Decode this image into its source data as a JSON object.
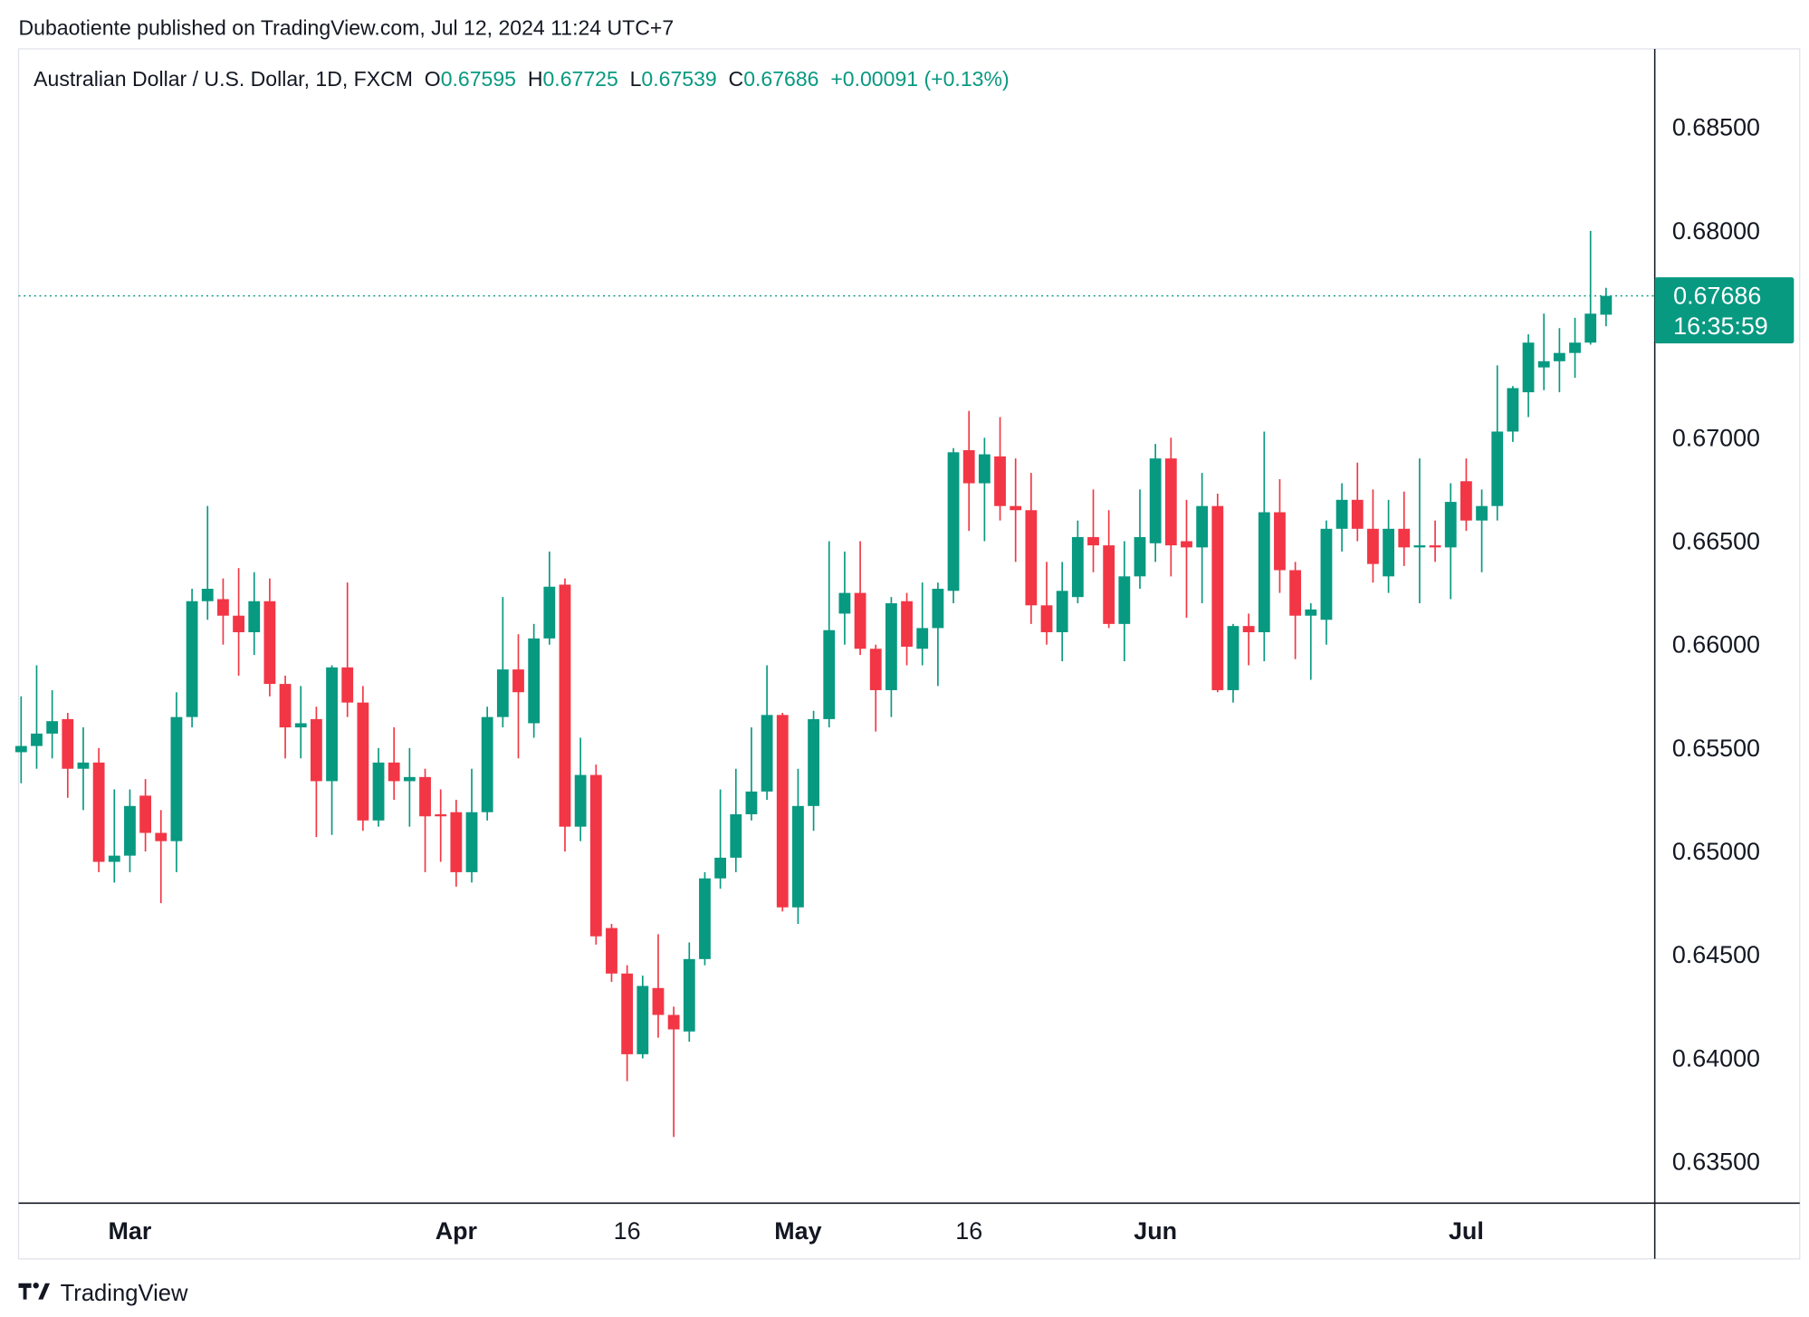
{
  "published": "Dubaotiente published on TradingView.com, Jul 12, 2024 11:24 UTC+7",
  "footer": "TradingView",
  "chart_data": {
    "type": "candlestick",
    "title": "Australian Dollar / U.S. Dollar, 1D, FXCM",
    "ohlc_header": [
      {
        "label": "O",
        "value": 0.67595
      },
      {
        "label": "H",
        "value": 0.67725
      },
      {
        "label": "L",
        "value": 0.67539
      },
      {
        "label": "C",
        "value": 0.67686
      }
    ],
    "change": "+0.00091 (+0.13%)",
    "countdown": "16:35:59",
    "up_color": "#089981",
    "down_color": "#f23645",
    "categories": [
      null,
      null,
      null,
      null,
      null,
      null,
      null,
      "Mar",
      null,
      null,
      null,
      null,
      null,
      null,
      null,
      null,
      null,
      null,
      null,
      null,
      null,
      null,
      null,
      null,
      null,
      null,
      null,
      null,
      "Apr",
      null,
      null,
      null,
      null,
      null,
      null,
      null,
      null,
      null,
      null,
      "16",
      null,
      null,
      null,
      null,
      null,
      null,
      null,
      null,
      null,
      null,
      "May",
      null,
      null,
      null,
      null,
      null,
      null,
      null,
      null,
      null,
      null,
      "16",
      null,
      null,
      null,
      null,
      null,
      null,
      null,
      null,
      null,
      null,
      null,
      "Jun",
      null,
      null,
      null,
      null,
      null,
      null,
      null,
      null,
      null,
      null,
      null,
      null,
      null,
      null,
      null,
      null,
      null,
      null,
      null,
      "Jul",
      null,
      null,
      null,
      null,
      null,
      null,
      null,
      null,
      null
    ],
    "open": [
      0.6548,
      0.6551,
      0.6557,
      0.6564,
      0.654,
      0.6543,
      0.6495,
      0.6498,
      0.6527,
      0.6509,
      0.6505,
      0.6565,
      0.6621,
      0.6622,
      0.6614,
      0.6606,
      0.6621,
      0.6581,
      0.656,
      0.6564,
      0.6534,
      0.6589,
      0.6572,
      0.6515,
      0.6543,
      0.6534,
      0.6536,
      0.6518,
      0.6519,
      0.649,
      0.6519,
      0.6565,
      0.6588,
      0.6562,
      0.6603,
      0.6629,
      0.6512,
      0.6537,
      0.6463,
      0.6441,
      0.6402,
      0.6434,
      0.6421,
      0.6413,
      0.6448,
      0.6487,
      0.6497,
      0.6518,
      0.6529,
      0.6566,
      0.6473,
      0.6522,
      0.6564,
      0.6615,
      0.6625,
      0.6598,
      0.6578,
      0.6621,
      0.6598,
      0.6608,
      0.6626,
      0.6694,
      0.6678,
      0.6691,
      0.6667,
      0.6665,
      0.6619,
      0.6606,
      0.6623,
      0.6652,
      0.6648,
      0.661,
      0.6633,
      0.6649,
      0.669,
      0.665,
      0.6647,
      0.6667,
      0.6578,
      0.6609,
      0.6606,
      0.6664,
      0.6636,
      0.6614,
      0.6612,
      0.6656,
      0.667,
      0.6656,
      0.6633,
      0.6656,
      0.6647,
      0.6648,
      0.6647,
      0.6679,
      0.666,
      0.6667,
      0.6703,
      0.6722,
      0.6734,
      0.6737,
      0.6741,
      0.6746,
      0.67595
    ],
    "high": [
      0.6575,
      0.659,
      0.6578,
      0.6567,
      0.656,
      0.655,
      0.653,
      0.653,
      0.6535,
      0.652,
      0.6577,
      0.6627,
      0.6667,
      0.6632,
      0.6637,
      0.6635,
      0.6632,
      0.6585,
      0.658,
      0.657,
      0.659,
      0.663,
      0.658,
      0.655,
      0.656,
      0.655,
      0.654,
      0.653,
      0.6525,
      0.654,
      0.657,
      0.6623,
      0.6605,
      0.661,
      0.6645,
      0.6632,
      0.6555,
      0.6542,
      0.6465,
      0.6445,
      0.644,
      0.646,
      0.6425,
      0.6456,
      0.649,
      0.653,
      0.654,
      0.656,
      0.659,
      0.6567,
      0.654,
      0.6568,
      0.665,
      0.6645,
      0.665,
      0.66,
      0.6623,
      0.6625,
      0.663,
      0.663,
      0.6695,
      0.6713,
      0.67,
      0.671,
      0.669,
      0.6683,
      0.664,
      0.664,
      0.666,
      0.6675,
      0.6665,
      0.665,
      0.6675,
      0.6697,
      0.67,
      0.667,
      0.6683,
      0.6673,
      0.661,
      0.6615,
      0.6703,
      0.668,
      0.664,
      0.662,
      0.666,
      0.6678,
      0.6688,
      0.6675,
      0.667,
      0.6674,
      0.669,
      0.666,
      0.6678,
      0.669,
      0.6675,
      0.6735,
      0.6725,
      0.675,
      0.676,
      0.6753,
      0.6758,
      0.68,
      0.67725
    ],
    "low": [
      0.6533,
      0.654,
      0.6545,
      0.6526,
      0.652,
      0.649,
      0.6485,
      0.649,
      0.65,
      0.6475,
      0.649,
      0.656,
      0.6612,
      0.66,
      0.6585,
      0.6595,
      0.6575,
      0.6545,
      0.6545,
      0.6507,
      0.6508,
      0.6565,
      0.651,
      0.6512,
      0.6525,
      0.6512,
      0.649,
      0.6495,
      0.6483,
      0.6485,
      0.6515,
      0.656,
      0.6545,
      0.6555,
      0.66,
      0.65,
      0.6505,
      0.6455,
      0.6437,
      0.6389,
      0.64,
      0.641,
      0.6362,
      0.6408,
      0.6445,
      0.6482,
      0.649,
      0.6515,
      0.6525,
      0.6471,
      0.6465,
      0.651,
      0.656,
      0.66,
      0.6595,
      0.6558,
      0.6565,
      0.659,
      0.659,
      0.658,
      0.662,
      0.6655,
      0.665,
      0.666,
      0.664,
      0.661,
      0.66,
      0.6592,
      0.662,
      0.6635,
      0.6608,
      0.6592,
      0.6627,
      0.664,
      0.6633,
      0.6613,
      0.662,
      0.6577,
      0.6572,
      0.659,
      0.6592,
      0.6625,
      0.6593,
      0.6583,
      0.66,
      0.6645,
      0.665,
      0.663,
      0.6625,
      0.6638,
      0.662,
      0.664,
      0.6622,
      0.6655,
      0.6635,
      0.666,
      0.6698,
      0.671,
      0.6723,
      0.6722,
      0.6729,
      0.6745,
      0.67539
    ],
    "close": [
      0.6551,
      0.6557,
      0.6563,
      0.654,
      0.6543,
      0.6495,
      0.6498,
      0.6522,
      0.6509,
      0.6505,
      0.6565,
      0.6621,
      0.6627,
      0.6614,
      0.6606,
      0.6621,
      0.6581,
      0.656,
      0.6562,
      0.6534,
      0.6589,
      0.6572,
      0.6515,
      0.6543,
      0.6534,
      0.6536,
      0.6517,
      0.6517,
      0.649,
      0.6519,
      0.6565,
      0.6588,
      0.6577,
      0.6603,
      0.6628,
      0.6512,
      0.6537,
      0.6459,
      0.6441,
      0.6402,
      0.6435,
      0.6421,
      0.6414,
      0.6448,
      0.6487,
      0.6497,
      0.6518,
      0.6529,
      0.6566,
      0.6473,
      0.6522,
      0.6564,
      0.6607,
      0.6625,
      0.6598,
      0.6578,
      0.662,
      0.6599,
      0.6608,
      0.6627,
      0.6693,
      0.6678,
      0.6692,
      0.6667,
      0.6665,
      0.6619,
      0.6606,
      0.6626,
      0.6652,
      0.6648,
      0.661,
      0.6633,
      0.6652,
      0.669,
      0.6648,
      0.6647,
      0.6667,
      0.6578,
      0.6609,
      0.6606,
      0.6664,
      0.6636,
      0.6614,
      0.6617,
      0.6656,
      0.667,
      0.6656,
      0.6639,
      0.6656,
      0.6647,
      0.6648,
      0.6647,
      0.6669,
      0.666,
      0.6667,
      0.6703,
      0.6724,
      0.6746,
      0.6737,
      0.6741,
      0.6746,
      0.676,
      0.67686
    ],
    "ylim": [
      0.633,
      0.6888
    ],
    "yticks": [
      {
        "value": 0.635,
        "label": "0.63500"
      },
      {
        "value": 0.64,
        "label": "0.64000"
      },
      {
        "value": 0.645,
        "label": "0.64500"
      },
      {
        "value": 0.65,
        "label": "0.65000"
      },
      {
        "value": 0.655,
        "label": "0.65500"
      },
      {
        "value": 0.66,
        "label": "0.66000"
      },
      {
        "value": 0.665,
        "label": "0.66500"
      },
      {
        "value": 0.67,
        "label": "0.67000"
      },
      {
        "value": 0.675,
        "label": "0.67500"
      },
      {
        "value": 0.68,
        "label": "0.68000"
      },
      {
        "value": 0.685,
        "label": "0.68500"
      }
    ],
    "grid": false
  }
}
